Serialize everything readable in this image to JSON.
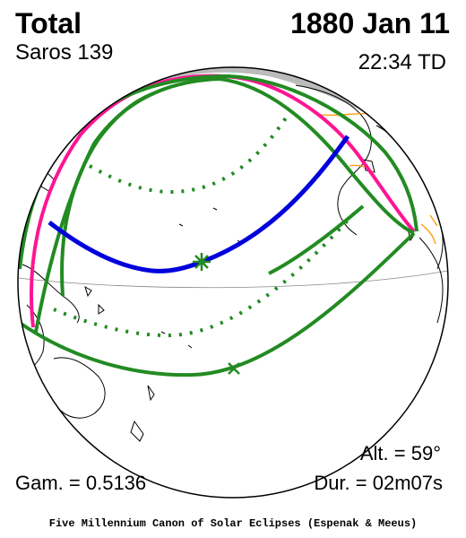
{
  "header": {
    "eclipse_type": "Total",
    "date": "1880 Jan 11",
    "saros": "Saros 139",
    "time": "22:34 TD"
  },
  "footer": {
    "altitude": "Alt. = 59°",
    "gamma": "Gam. = 0.5136",
    "duration": "Dur. = 02m07s",
    "credit": "Five Millennium Canon of Solar Eclipses (Espenak & Meeus)"
  },
  "map": {
    "colors": {
      "night_side": "#bbbbbb",
      "central_path": "#0000dd",
      "penumbral_limits": "#228b22",
      "rise_set_curve": "#ff1493",
      "country_borders": "#ff9900",
      "coastlines": "#000000"
    },
    "icons": [
      "greatest-eclipse-star-icon",
      "greatest-duration-x-icon"
    ]
  }
}
